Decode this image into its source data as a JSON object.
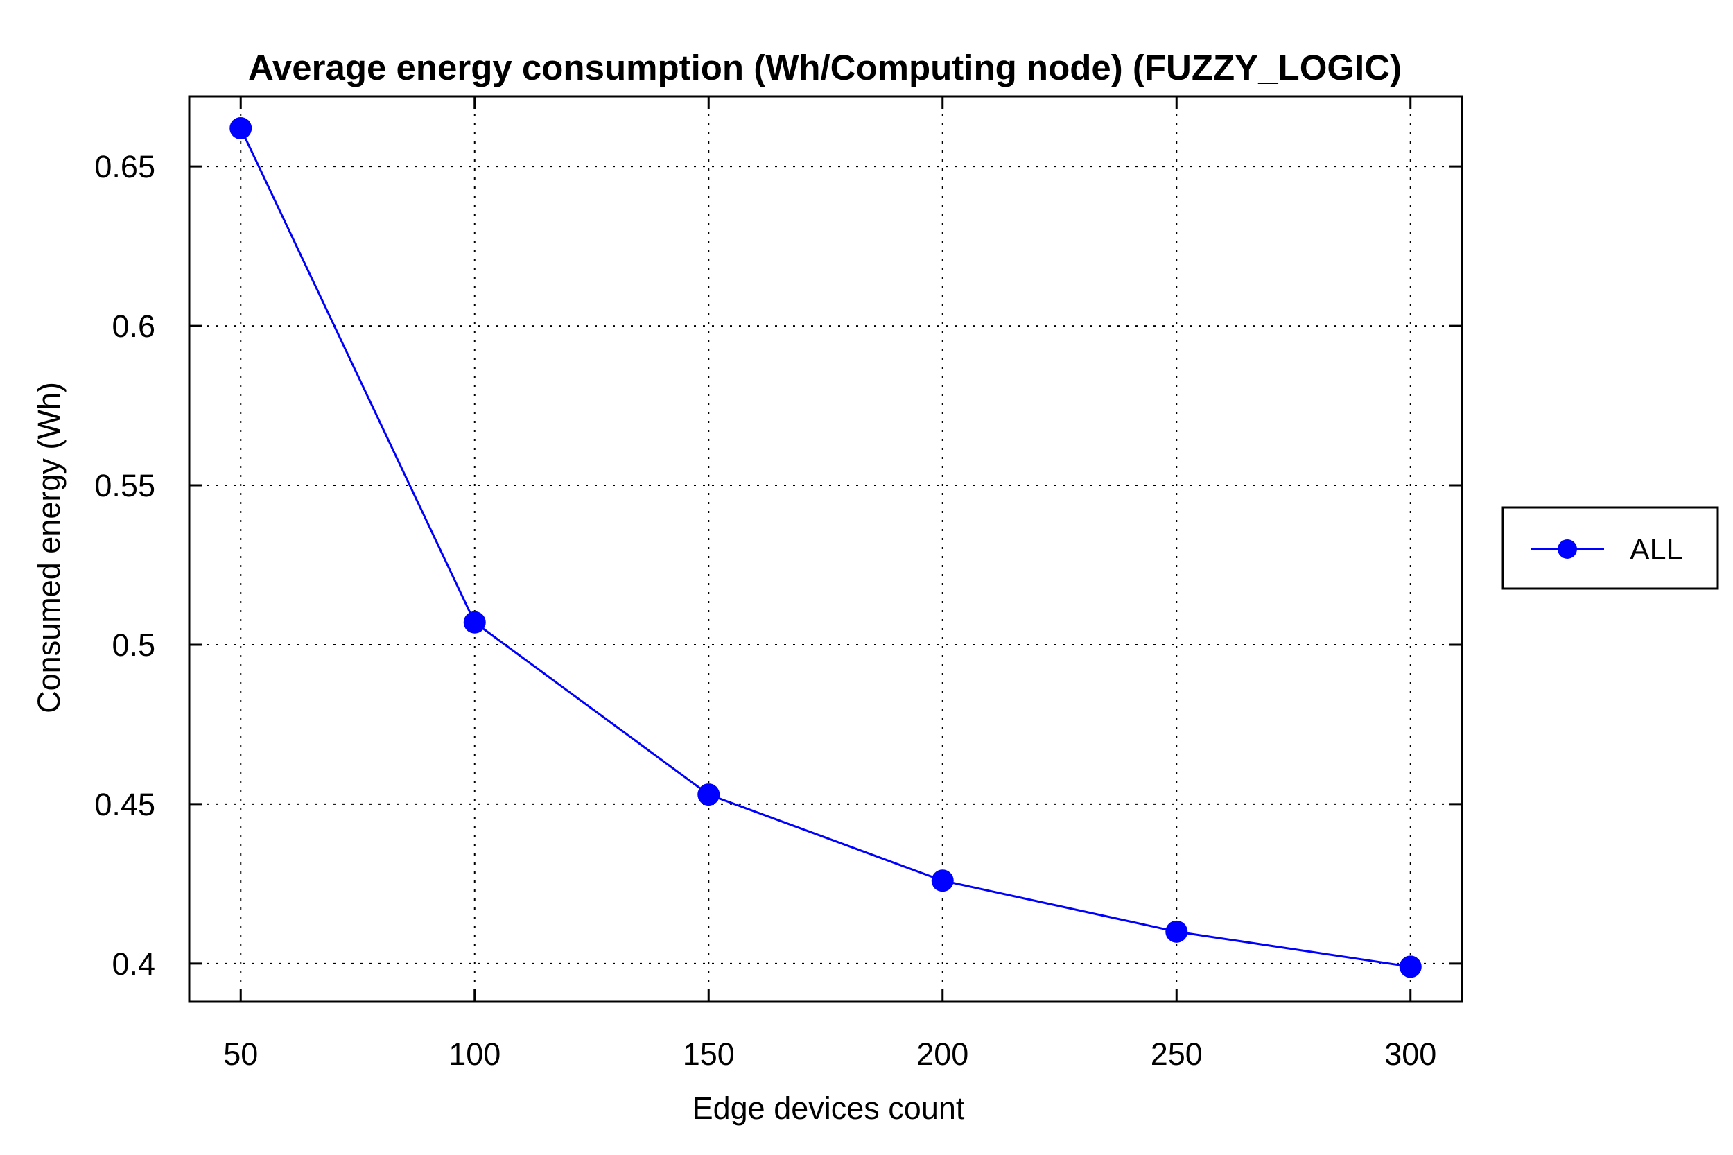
{
  "chart_data": {
    "type": "line",
    "title": "Average energy consumption (Wh/Computing node) (FUZZY_LOGIC)",
    "xlabel": "Edge devices count",
    "ylabel": "Consumed energy (Wh)",
    "x": [
      50,
      100,
      150,
      200,
      250,
      300
    ],
    "x_ticks": [
      "50",
      "100",
      "150",
      "200",
      "250",
      "300"
    ],
    "xlim": [
      39,
      311
    ],
    "y_ticks": [
      "0.4",
      "0.45",
      "0.5",
      "0.55",
      "0.6",
      "0.65"
    ],
    "ylim": [
      0.388,
      0.672
    ],
    "grid": true,
    "legend_position": "right",
    "series": [
      {
        "name": "ALL",
        "color": "#0000ff",
        "values": [
          0.662,
          0.507,
          0.453,
          0.426,
          0.41,
          0.399
        ]
      }
    ]
  }
}
